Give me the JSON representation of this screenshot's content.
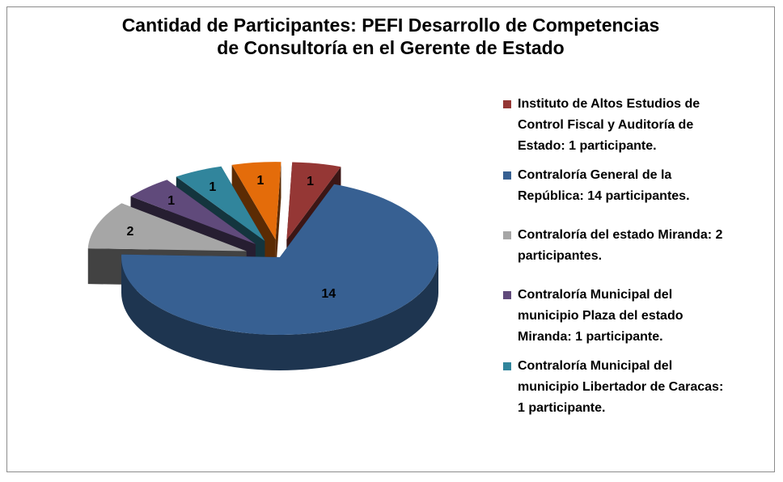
{
  "chart_data": {
    "type": "pie",
    "title_lines": [
      "Cantidad de Participantes: PEFI Desarrollo de Competencias",
      "de Consultoría en el Gerente de Estado"
    ],
    "slices": [
      {
        "legend": [
          "Instituto de Altos Estudios  de",
          "Control Fiscal y Auditoría de",
          "Estado: 1 participante."
        ],
        "value": 1,
        "label": "1",
        "color": "#953735",
        "explode": true
      },
      {
        "legend": [
          "Contraloría General de la",
          "República: 14 participantes."
        ],
        "value": 14,
        "label": "14",
        "color": "#376092",
        "explode": false
      },
      {
        "legend": [
          "Contraloría del estado Miranda:  2",
          "participantes."
        ],
        "value": 2,
        "label": "2",
        "color": "#a6a6a6",
        "explode": true
      },
      {
        "legend": [
          "Contraloría Municipal del",
          "municipio Plaza del estado",
          "Miranda: 1 participante."
        ],
        "value": 1,
        "label": "1",
        "color": "#604a7b",
        "explode": true
      },
      {
        "legend": [
          "Contraloría Municipal del",
          "municipio Libertador de Caracas:",
          "1 participante."
        ],
        "value": 1,
        "label": "1",
        "color": "#31859c",
        "explode": true
      },
      {
        "legend": [],
        "value": 1,
        "label": "1",
        "color": "#e46c0a",
        "explode": true
      }
    ]
  }
}
